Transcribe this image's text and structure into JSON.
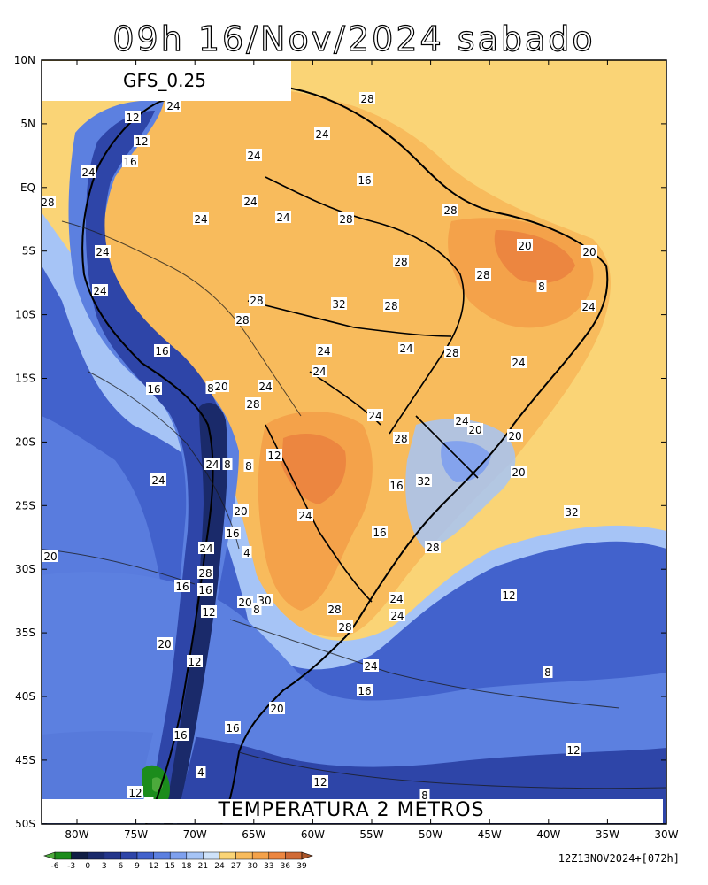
{
  "title": "09h 16/Nov/2024 sabado",
  "model_label": "GFS_0.25",
  "field_label": "TEMPERATURA 2 METROS",
  "run_info": "12Z13NOV2024+[072h]",
  "lat_ticks": [
    "10N",
    "5N",
    "EQ",
    "5S",
    "10S",
    "15S",
    "20S",
    "25S",
    "30S",
    "35S",
    "40S",
    "45S",
    "50S"
  ],
  "lon_ticks": [
    "80W",
    "75W",
    "70W",
    "65W",
    "60W",
    "55W",
    "50W",
    "45W",
    "40W",
    "35W",
    "30W"
  ],
  "colorbar": {
    "labels": [
      "-6",
      "-3",
      "0",
      "3",
      "6",
      "9",
      "12",
      "15",
      "18",
      "21",
      "24",
      "27",
      "30",
      "33",
      "36",
      "39"
    ],
    "colors": [
      "#4caa3c",
      "#1c8c1c",
      "#101e44",
      "#1a2a6a",
      "#24368a",
      "#2e45a8",
      "#4262cc",
      "#5c80e0",
      "#7ea0ee",
      "#a6c4f6",
      "#cee2fa",
      "#fad476",
      "#f8bb5c",
      "#f4a24a",
      "#ec8640",
      "#d06a36",
      "#a8552a"
    ]
  },
  "contour_labels": [
    "28",
    "24",
    "24",
    "12",
    "12",
    "24",
    "16",
    "16",
    "24",
    "24",
    "28",
    "24",
    "28",
    "24",
    "28",
    "20",
    "28",
    "20",
    "8",
    "24",
    "24",
    "28",
    "24",
    "28",
    "32",
    "28",
    "28",
    "28",
    "24",
    "24",
    "24",
    "24",
    "16",
    "24",
    "16",
    "8",
    "20",
    "28",
    "24",
    "28",
    "24",
    "20",
    "20",
    "20",
    "24",
    "8",
    "8",
    "12",
    "32",
    "16",
    "24",
    "20",
    "24",
    "32",
    "16",
    "16",
    "28",
    "20",
    "24",
    "4",
    "28",
    "16",
    "16",
    "12",
    "20",
    "30",
    "24",
    "28",
    "28",
    "24",
    "20",
    "24",
    "12",
    "20",
    "8",
    "16",
    "16",
    "12",
    "16",
    "4",
    "12",
    "12",
    "8",
    "8",
    "12",
    "8"
  ],
  "colors": {
    "ocean_warm": "#fad476",
    "land_warm": "#f8bb5c",
    "hot": "#f4a24a",
    "very_hot": "#ec8640",
    "cool": "#a6c4f6",
    "mild": "#cee2fa",
    "cold": "#7ea0ee",
    "colder": "#5c80e0",
    "deep": "#4262cc",
    "deeper": "#2e45a8",
    "darkest": "#1a2a6a"
  }
}
